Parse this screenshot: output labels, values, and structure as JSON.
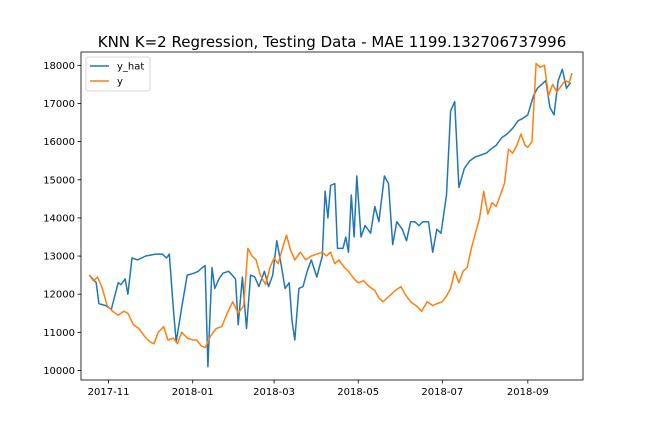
{
  "chart_data": {
    "type": "line",
    "title": "KNN K=2 Regression, Testing Data - MAE 1199.132706737996",
    "xlabel": "",
    "ylabel": "",
    "x_range": [
      "2017-10-12",
      "2018-10-11"
    ],
    "ylim": [
      9750,
      18350
    ],
    "x_ticks": [
      {
        "date": "2017-11-01",
        "label": "2017-11"
      },
      {
        "date": "2018-01-01",
        "label": "2018-01"
      },
      {
        "date": "2018-03-01",
        "label": "2018-03"
      },
      {
        "date": "2018-05-01",
        "label": "2018-05"
      },
      {
        "date": "2018-07-01",
        "label": "2018-07"
      },
      {
        "date": "2018-09-01",
        "label": "2018-09"
      }
    ],
    "y_ticks": [
      10000,
      11000,
      12000,
      13000,
      14000,
      15000,
      16000,
      17000,
      18000
    ],
    "grid": false,
    "legend_position": "upper-left",
    "series": [
      {
        "name": "y_hat",
        "color": "#1f77b4",
        "points": [
          [
            "2017-10-18",
            12500
          ],
          [
            "2017-10-23",
            12300
          ],
          [
            "2017-10-25",
            11750
          ],
          [
            "2017-10-30",
            11700
          ],
          [
            "2017-11-03",
            11600
          ],
          [
            "2017-11-08",
            12300
          ],
          [
            "2017-11-10",
            12250
          ],
          [
            "2017-11-13",
            12400
          ],
          [
            "2017-11-15",
            12000
          ],
          [
            "2017-11-18",
            12950
          ],
          [
            "2017-11-22",
            12900
          ],
          [
            "2017-11-28",
            13000
          ],
          [
            "2017-12-05",
            13050
          ],
          [
            "2017-12-10",
            13050
          ],
          [
            "2017-12-13",
            12950
          ],
          [
            "2017-12-15",
            13050
          ],
          [
            "2017-12-18",
            11600
          ],
          [
            "2017-12-20",
            10750
          ],
          [
            "2017-12-24",
            11650
          ],
          [
            "2017-12-28",
            12500
          ],
          [
            "2018-01-02",
            12550
          ],
          [
            "2018-01-05",
            12600
          ],
          [
            "2018-01-08",
            12700
          ],
          [
            "2018-01-10",
            12750
          ],
          [
            "2018-01-12",
            10100
          ],
          [
            "2018-01-15",
            12700
          ],
          [
            "2018-01-17",
            12150
          ],
          [
            "2018-01-20",
            12400
          ],
          [
            "2018-01-23",
            12550
          ],
          [
            "2018-01-27",
            12600
          ],
          [
            "2018-02-01",
            12400
          ],
          [
            "2018-02-03",
            11200
          ],
          [
            "2018-02-06",
            12450
          ],
          [
            "2018-02-09",
            11100
          ],
          [
            "2018-02-12",
            12500
          ],
          [
            "2018-02-15",
            12450
          ],
          [
            "2018-02-18",
            12200
          ],
          [
            "2018-02-22",
            12600
          ],
          [
            "2018-02-25",
            12200
          ],
          [
            "2018-02-28",
            12500
          ],
          [
            "2018-03-03",
            13400
          ],
          [
            "2018-03-06",
            12800
          ],
          [
            "2018-03-09",
            12150
          ],
          [
            "2018-03-12",
            12300
          ],
          [
            "2018-03-14",
            11300
          ],
          [
            "2018-03-16",
            10800
          ],
          [
            "2018-03-19",
            12150
          ],
          [
            "2018-03-22",
            12200
          ],
          [
            "2018-03-25",
            12600
          ],
          [
            "2018-03-28",
            12900
          ],
          [
            "2018-04-01",
            12450
          ],
          [
            "2018-04-05",
            13000
          ],
          [
            "2018-04-07",
            14700
          ],
          [
            "2018-04-09",
            14000
          ],
          [
            "2018-04-11",
            14850
          ],
          [
            "2018-04-14",
            14900
          ],
          [
            "2018-04-16",
            13200
          ],
          [
            "2018-04-20",
            13200
          ],
          [
            "2018-04-22",
            13500
          ],
          [
            "2018-04-24",
            13100
          ],
          [
            "2018-04-26",
            14600
          ],
          [
            "2018-04-28",
            13500
          ],
          [
            "2018-04-30",
            15100
          ],
          [
            "2018-05-03",
            13500
          ],
          [
            "2018-05-06",
            13800
          ],
          [
            "2018-05-10",
            13600
          ],
          [
            "2018-05-13",
            14300
          ],
          [
            "2018-05-16",
            13900
          ],
          [
            "2018-05-20",
            15100
          ],
          [
            "2018-05-23",
            14900
          ],
          [
            "2018-05-26",
            13300
          ],
          [
            "2018-05-29",
            13900
          ],
          [
            "2018-06-02",
            13700
          ],
          [
            "2018-06-05",
            13400
          ],
          [
            "2018-06-08",
            13900
          ],
          [
            "2018-06-11",
            13900
          ],
          [
            "2018-06-14",
            13800
          ],
          [
            "2018-06-17",
            13900
          ],
          [
            "2018-06-21",
            13900
          ],
          [
            "2018-06-24",
            13100
          ],
          [
            "2018-06-27",
            13700
          ],
          [
            "2018-06-30",
            13600
          ],
          [
            "2018-07-04",
            14600
          ],
          [
            "2018-07-07",
            16800
          ],
          [
            "2018-07-10",
            17050
          ],
          [
            "2018-07-13",
            14800
          ],
          [
            "2018-07-17",
            15300
          ],
          [
            "2018-07-21",
            15500
          ],
          [
            "2018-07-25",
            15600
          ],
          [
            "2018-07-29",
            15650
          ],
          [
            "2018-08-02",
            15700
          ],
          [
            "2018-08-05",
            15800
          ],
          [
            "2018-08-09",
            15900
          ],
          [
            "2018-08-13",
            16100
          ],
          [
            "2018-08-17",
            16200
          ],
          [
            "2018-08-21",
            16350
          ],
          [
            "2018-08-25",
            16550
          ],
          [
            "2018-08-28",
            16600
          ],
          [
            "2018-09-01",
            16700
          ],
          [
            "2018-09-05",
            17200
          ],
          [
            "2018-09-08",
            17400
          ],
          [
            "2018-09-11",
            17500
          ],
          [
            "2018-09-14",
            17600
          ],
          [
            "2018-09-17",
            16900
          ],
          [
            "2018-09-20",
            16700
          ],
          [
            "2018-09-23",
            17600
          ],
          [
            "2018-09-26",
            17900
          ],
          [
            "2018-09-29",
            17400
          ],
          [
            "2018-10-02",
            17550
          ]
        ]
      },
      {
        "name": "y",
        "color": "#ff7f0e",
        "points": [
          [
            "2017-10-18",
            12500
          ],
          [
            "2017-10-21",
            12350
          ],
          [
            "2017-10-24",
            12450
          ],
          [
            "2017-10-27",
            12200
          ],
          [
            "2017-10-31",
            11700
          ],
          [
            "2017-11-04",
            11550
          ],
          [
            "2017-11-08",
            11450
          ],
          [
            "2017-11-12",
            11550
          ],
          [
            "2017-11-15",
            11500
          ],
          [
            "2017-11-19",
            11200
          ],
          [
            "2017-11-23",
            11100
          ],
          [
            "2017-11-27",
            10900
          ],
          [
            "2017-12-01",
            10750
          ],
          [
            "2017-12-04",
            10700
          ],
          [
            "2017-12-07",
            11000
          ],
          [
            "2017-12-11",
            11150
          ],
          [
            "2017-12-14",
            10800
          ],
          [
            "2017-12-18",
            10850
          ],
          [
            "2017-12-21",
            10700
          ],
          [
            "2017-12-24",
            11000
          ],
          [
            "2017-12-28",
            10850
          ],
          [
            "2018-01-01",
            10800
          ],
          [
            "2018-01-04",
            10800
          ],
          [
            "2018-01-07",
            10650
          ],
          [
            "2018-01-10",
            10600
          ],
          [
            "2018-01-14",
            10900
          ],
          [
            "2018-01-18",
            11100
          ],
          [
            "2018-01-22",
            11150
          ],
          [
            "2018-01-26",
            11500
          ],
          [
            "2018-01-30",
            11800
          ],
          [
            "2018-02-03",
            11500
          ],
          [
            "2018-02-07",
            11700
          ],
          [
            "2018-02-10",
            13200
          ],
          [
            "2018-02-13",
            13000
          ],
          [
            "2018-02-16",
            12900
          ],
          [
            "2018-02-19",
            12500
          ],
          [
            "2018-02-23",
            12250
          ],
          [
            "2018-02-26",
            12700
          ],
          [
            "2018-03-01",
            12950
          ],
          [
            "2018-03-04",
            12800
          ],
          [
            "2018-03-07",
            13200
          ],
          [
            "2018-03-10",
            13550
          ],
          [
            "2018-03-13",
            13150
          ],
          [
            "2018-03-16",
            12900
          ],
          [
            "2018-03-20",
            13100
          ],
          [
            "2018-03-24",
            12900
          ],
          [
            "2018-03-28",
            13000
          ],
          [
            "2018-04-01",
            13050
          ],
          [
            "2018-04-05",
            13100
          ],
          [
            "2018-04-08",
            13000
          ],
          [
            "2018-04-11",
            13100
          ],
          [
            "2018-04-14",
            12800
          ],
          [
            "2018-04-17",
            12900
          ],
          [
            "2018-04-21",
            12700
          ],
          [
            "2018-04-24",
            12600
          ],
          [
            "2018-04-28",
            12400
          ],
          [
            "2018-05-01",
            12300
          ],
          [
            "2018-05-05",
            12350
          ],
          [
            "2018-05-09",
            12200
          ],
          [
            "2018-05-13",
            12100
          ],
          [
            "2018-05-16",
            11900
          ],
          [
            "2018-05-19",
            11800
          ],
          [
            "2018-05-22",
            11900
          ],
          [
            "2018-05-25",
            12000
          ],
          [
            "2018-05-28",
            12100
          ],
          [
            "2018-06-01",
            12200
          ],
          [
            "2018-06-04",
            12000
          ],
          [
            "2018-06-08",
            11800
          ],
          [
            "2018-06-12",
            11700
          ],
          [
            "2018-06-16",
            11550
          ],
          [
            "2018-06-20",
            11800
          ],
          [
            "2018-06-24",
            11700
          ],
          [
            "2018-06-27",
            11750
          ],
          [
            "2018-07-01",
            11800
          ],
          [
            "2018-07-04",
            11950
          ],
          [
            "2018-07-07",
            12150
          ],
          [
            "2018-07-10",
            12600
          ],
          [
            "2018-07-13",
            12300
          ],
          [
            "2018-07-16",
            12600
          ],
          [
            "2018-07-19",
            12700
          ],
          [
            "2018-07-22",
            13200
          ],
          [
            "2018-07-25",
            13600
          ],
          [
            "2018-07-28",
            14000
          ],
          [
            "2018-07-31",
            14700
          ],
          [
            "2018-08-03",
            14100
          ],
          [
            "2018-08-06",
            14400
          ],
          [
            "2018-08-09",
            14300
          ],
          [
            "2018-08-12",
            14600
          ],
          [
            "2018-08-15",
            14900
          ],
          [
            "2018-08-18",
            15800
          ],
          [
            "2018-08-21",
            15700
          ],
          [
            "2018-08-24",
            15900
          ],
          [
            "2018-08-27",
            16200
          ],
          [
            "2018-08-30",
            15900
          ],
          [
            "2018-09-01",
            15850
          ],
          [
            "2018-09-04",
            16000
          ],
          [
            "2018-09-07",
            18050
          ],
          [
            "2018-09-10",
            17950
          ],
          [
            "2018-09-13",
            18000
          ],
          [
            "2018-09-16",
            17200
          ],
          [
            "2018-09-19",
            17500
          ],
          [
            "2018-09-22",
            17300
          ],
          [
            "2018-09-25",
            17450
          ],
          [
            "2018-09-28",
            17600
          ],
          [
            "2018-10-01",
            17550
          ],
          [
            "2018-10-03",
            17800
          ]
        ]
      }
    ]
  }
}
